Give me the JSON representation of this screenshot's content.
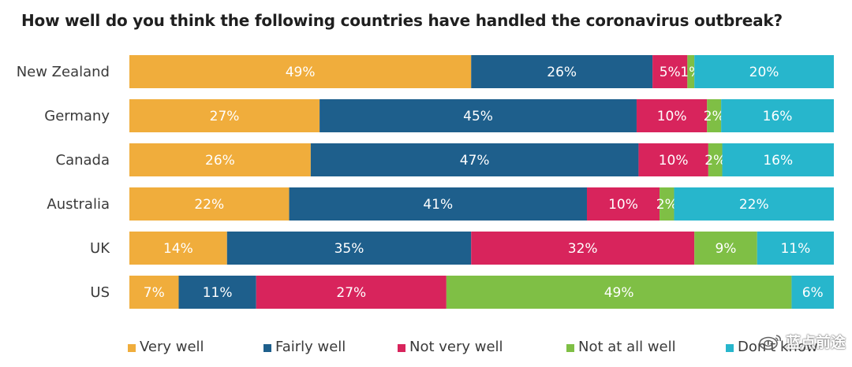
{
  "chart_data": {
    "type": "bar",
    "orientation": "horizontal",
    "stacked": true,
    "title": "How well do you think the following countries have handled the coronavirus outbreak?",
    "categories": [
      "New Zealand",
      "Germany",
      "Canada",
      "Australia",
      "UK",
      "US"
    ],
    "series": [
      {
        "name": "Very well",
        "color": "#f0ad3c",
        "values": [
          49,
          27,
          26,
          22,
          14,
          7
        ]
      },
      {
        "name": "Fairly well",
        "color": "#1e5f8c",
        "values": [
          26,
          45,
          47,
          41,
          35,
          11
        ]
      },
      {
        "name": "Not very well",
        "color": "#d8245c",
        "values": [
          5,
          10,
          10,
          10,
          32,
          27
        ]
      },
      {
        "name": "Not at all well",
        "color": "#7fbf45",
        "values": [
          1,
          2,
          2,
          2,
          9,
          49
        ]
      },
      {
        "name": "Don't know",
        "color": "#27b6cc",
        "values": [
          20,
          16,
          16,
          22,
          11,
          6
        ]
      }
    ],
    "value_suffix": "%",
    "legend_position": "bottom",
    "grid": false
  },
  "watermark": {
    "text": "蓝点前途"
  }
}
